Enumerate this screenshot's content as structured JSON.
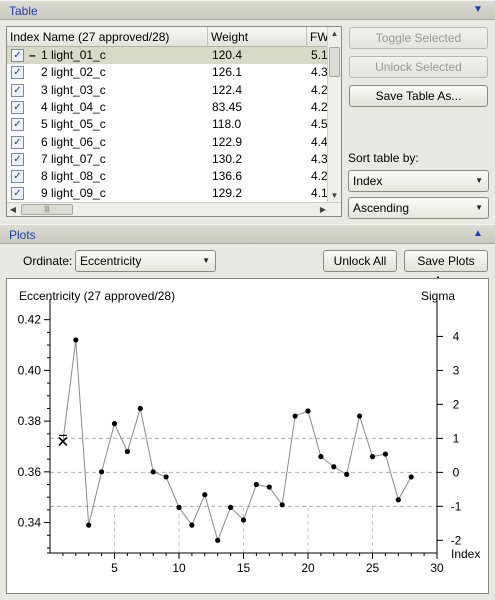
{
  "table_section": {
    "title": "Table"
  },
  "plots_section": {
    "title": "Plots"
  },
  "table": {
    "columns": [
      "Index Name (27 approved/28)",
      "Weight",
      "FW"
    ],
    "rows": [
      {
        "name": "1 light_01_c",
        "weight": "120.4",
        "fw": "5.1",
        "prefix": "–"
      },
      {
        "name": "2 light_02_c",
        "weight": "126.1",
        "fw": "4.3",
        "prefix": ""
      },
      {
        "name": "3 light_03_c",
        "weight": "122.4",
        "fw": "4.2",
        "prefix": ""
      },
      {
        "name": "4 light_04_c",
        "weight": "83.45",
        "fw": "4.2",
        "prefix": ""
      },
      {
        "name": "5 light_05_c",
        "weight": "118.0",
        "fw": "4.5",
        "prefix": ""
      },
      {
        "name": "6 light_06_c",
        "weight": "122.9",
        "fw": "4.4",
        "prefix": ""
      },
      {
        "name": "7 light_07_c",
        "weight": "130.2",
        "fw": "4.3",
        "prefix": ""
      },
      {
        "name": "8 light_08_c",
        "weight": "136.6",
        "fw": "4.2",
        "prefix": ""
      },
      {
        "name": "9 light_09_c",
        "weight": "129.2",
        "fw": "4.1",
        "prefix": ""
      }
    ]
  },
  "buttons": {
    "toggle_selected": "Toggle Selected",
    "unlock_selected": "Unlock Selected",
    "save_table": "Save Table As...",
    "unlock_all": "Unlock All",
    "save_plots": "Save Plots As..."
  },
  "sort": {
    "label": "Sort table by:",
    "field": "Index",
    "order": "Ascending"
  },
  "ordinate": {
    "label": "Ordinate:",
    "value": "Eccentricity"
  },
  "chart_data": {
    "type": "line",
    "title": "Eccentricity (27 approved/28)",
    "ylabel_right": "Sigma",
    "xlabel": "Index",
    "x": [
      1,
      2,
      3,
      4,
      5,
      6,
      7,
      8,
      9,
      10,
      11,
      12,
      13,
      14,
      15,
      16,
      17,
      18,
      19,
      20,
      21,
      22,
      23,
      24,
      25,
      26,
      27,
      28
    ],
    "values": [
      0.372,
      0.412,
      0.339,
      0.36,
      0.379,
      0.368,
      0.385,
      0.36,
      0.358,
      0.346,
      0.339,
      0.351,
      0.333,
      0.346,
      0.341,
      0.355,
      0.354,
      0.347,
      0.382,
      0.384,
      0.366,
      0.362,
      0.359,
      0.382,
      0.366,
      0.367,
      0.349,
      0.358
    ],
    "rejected_x": 1,
    "xlim": [
      0,
      30
    ],
    "ylim": [
      0.328,
      0.425
    ],
    "xticks": [
      5,
      10,
      15,
      20,
      25,
      30
    ],
    "yticks": [
      "0.34",
      "0.36",
      "0.38",
      "0.40",
      "0.42"
    ],
    "ytick_values": [
      0.34,
      0.36,
      0.38,
      0.4,
      0.42
    ],
    "sigma_ticks": [
      "4",
      "3",
      "2",
      "1",
      "0",
      "-1",
      "-2"
    ],
    "sigma_mean": 0.3598,
    "sigma_step": 0.0134,
    "dashed_sigma_lines": [
      1,
      0,
      -1
    ]
  }
}
